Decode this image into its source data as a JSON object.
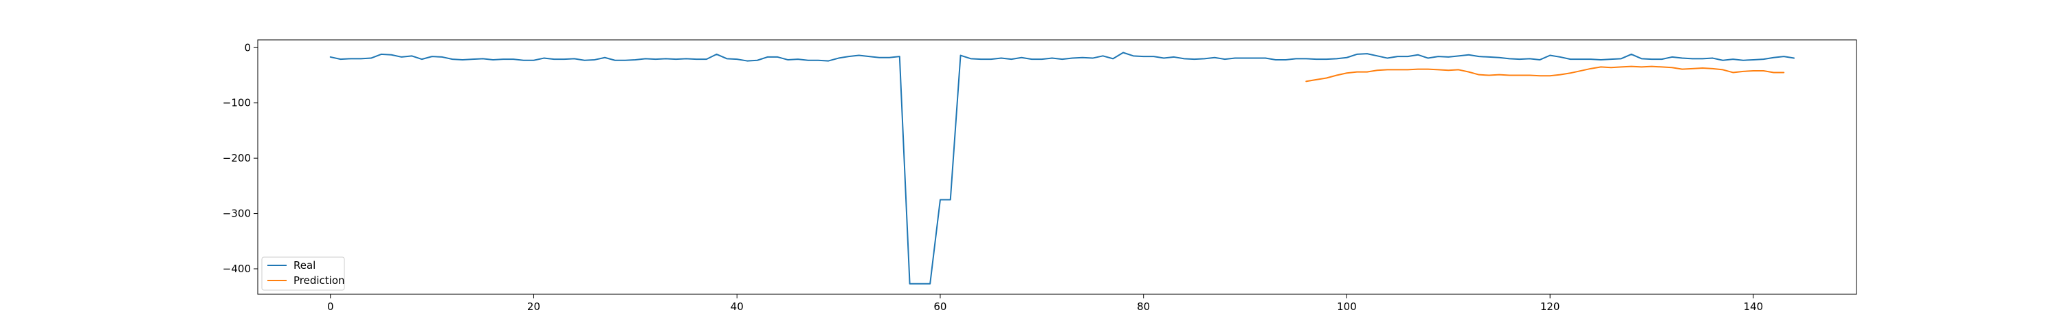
{
  "chart_data": {
    "type": "line",
    "title": "",
    "xlabel": "",
    "ylabel": "",
    "xlim": [
      -7.15,
      150.15
    ],
    "ylim": [
      -446,
      14
    ],
    "x_ticks": [
      0,
      20,
      40,
      60,
      80,
      100,
      120,
      140
    ],
    "y_ticks": [
      0,
      -100,
      -200,
      -300,
      -400
    ],
    "grid": false,
    "legend_position": "lower-left",
    "series": [
      {
        "name": "Real",
        "color": "#1f77b4",
        "x_start": 0,
        "values": [
          -17,
          -21,
          -20,
          -20,
          -19,
          -12,
          -13,
          -17,
          -15,
          -21,
          -16,
          -17,
          -21,
          -22,
          -21,
          -20,
          -22,
          -21,
          -21,
          -23,
          -23,
          -19,
          -21,
          -21,
          -20,
          -23,
          -22,
          -18,
          -23,
          -23,
          -22,
          -20,
          -21,
          -20,
          -21,
          -20,
          -21,
          -21,
          -12,
          -20,
          -21,
          -24,
          -23,
          -17,
          -17,
          -22,
          -21,
          -23,
          -23,
          -24,
          -19,
          -16,
          -14,
          -16,
          -18,
          -18,
          -16,
          -427,
          -427,
          -427,
          -275,
          -275,
          -14,
          -20,
          -21,
          -21,
          -19,
          -21,
          -18,
          -21,
          -21,
          -19,
          -21,
          -19,
          -18,
          -19,
          -15,
          -20,
          -9,
          -15,
          -16,
          -16,
          -19,
          -17,
          -20,
          -21,
          -20,
          -18,
          -21,
          -19,
          -19,
          -19,
          -19,
          -22,
          -22,
          -20,
          -20,
          -21,
          -21,
          -20,
          -18,
          -12,
          -11,
          -15,
          -19,
          -16,
          -16,
          -13,
          -19,
          -16,
          -17,
          -15,
          -13,
          -16,
          -17,
          -18,
          -20,
          -21,
          -20,
          -22,
          -14,
          -17,
          -21,
          -21,
          -21,
          -22,
          -21,
          -20,
          -12,
          -20,
          -21,
          -21,
          -17,
          -19,
          -20,
          -20,
          -19,
          -23,
          -21,
          -23,
          -22,
          -21,
          -18,
          -16,
          -19
        ]
      },
      {
        "name": "Prediction",
        "color": "#ff7f0e",
        "x_start": 96,
        "values": [
          -61,
          -58,
          -55,
          -50,
          -46,
          -44,
          -44,
          -41,
          -40,
          -40,
          -40,
          -39,
          -39,
          -40,
          -41,
          -40,
          -44,
          -49,
          -50,
          -49,
          -50,
          -50,
          -50,
          -51,
          -51,
          -49,
          -46,
          -42,
          -38,
          -35,
          -36,
          -35,
          -34,
          -35,
          -34,
          -35,
          -36,
          -39,
          -38,
          -37,
          -38,
          -40,
          -45,
          -43,
          -42,
          -42,
          -45,
          -45
        ]
      }
    ]
  }
}
